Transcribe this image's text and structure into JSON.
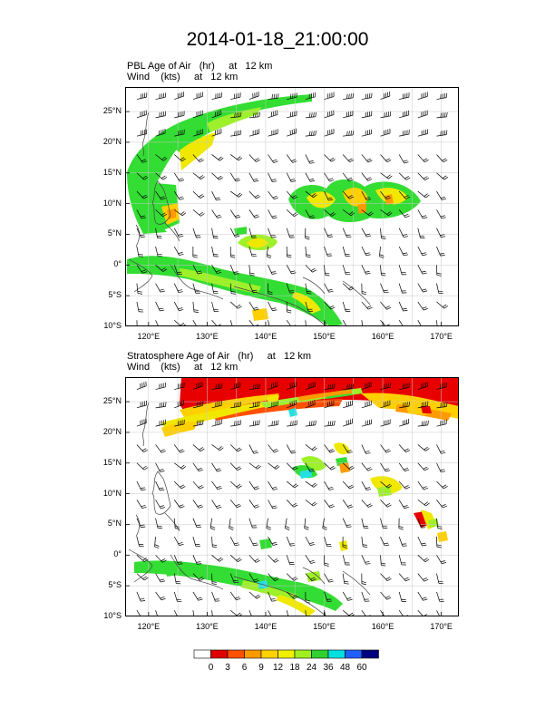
{
  "title": "2014-01-18_21:00:00",
  "panels": [
    {
      "id": "pbl",
      "label_line1": "PBL Age of Air   (hr)     at   12 km",
      "label_line2": "Wind    (kts)     at   12 km"
    },
    {
      "id": "strat",
      "label_line1": "Stratosphere Age of Air   (hr)     at   12 km",
      "label_line2": "Wind    (kts)     at   12 km"
    }
  ],
  "axes": {
    "lon_ticks": [
      "120°E",
      "130°E",
      "140°E",
      "150°E",
      "160°E",
      "170°E"
    ],
    "lon_values": [
      120,
      130,
      140,
      150,
      160,
      170
    ],
    "lat_ticks": [
      "25°N",
      "20°N",
      "15°N",
      "10°N",
      "5°N",
      "0°",
      "5°S",
      "10°S"
    ],
    "lat_values": [
      25,
      20,
      15,
      10,
      5,
      0,
      -5,
      -10
    ],
    "lon_range": [
      116,
      173
    ],
    "lat_range": [
      -10,
      29
    ]
  },
  "colorbar": {
    "labels": [
      "0",
      "3",
      "6",
      "9",
      "12",
      "18",
      "24",
      "36",
      "48",
      "60"
    ],
    "colors": [
      "#ffffff",
      "#e00000",
      "#ff5000",
      "#ff9a00",
      "#ffd200",
      "#f0f000",
      "#a0f020",
      "#30d030",
      "#00e0e0",
      "#2060ff",
      "#000080"
    ]
  },
  "colors": {
    "green": "#33dd33",
    "light_green": "#9ef02a",
    "yellow": "#f0e800",
    "gold": "#ffd000",
    "orange": "#ff9a00",
    "red": "#e80000",
    "cyan": "#22e0e0",
    "coast": "#444444",
    "grid": "#c8c8c8"
  }
}
